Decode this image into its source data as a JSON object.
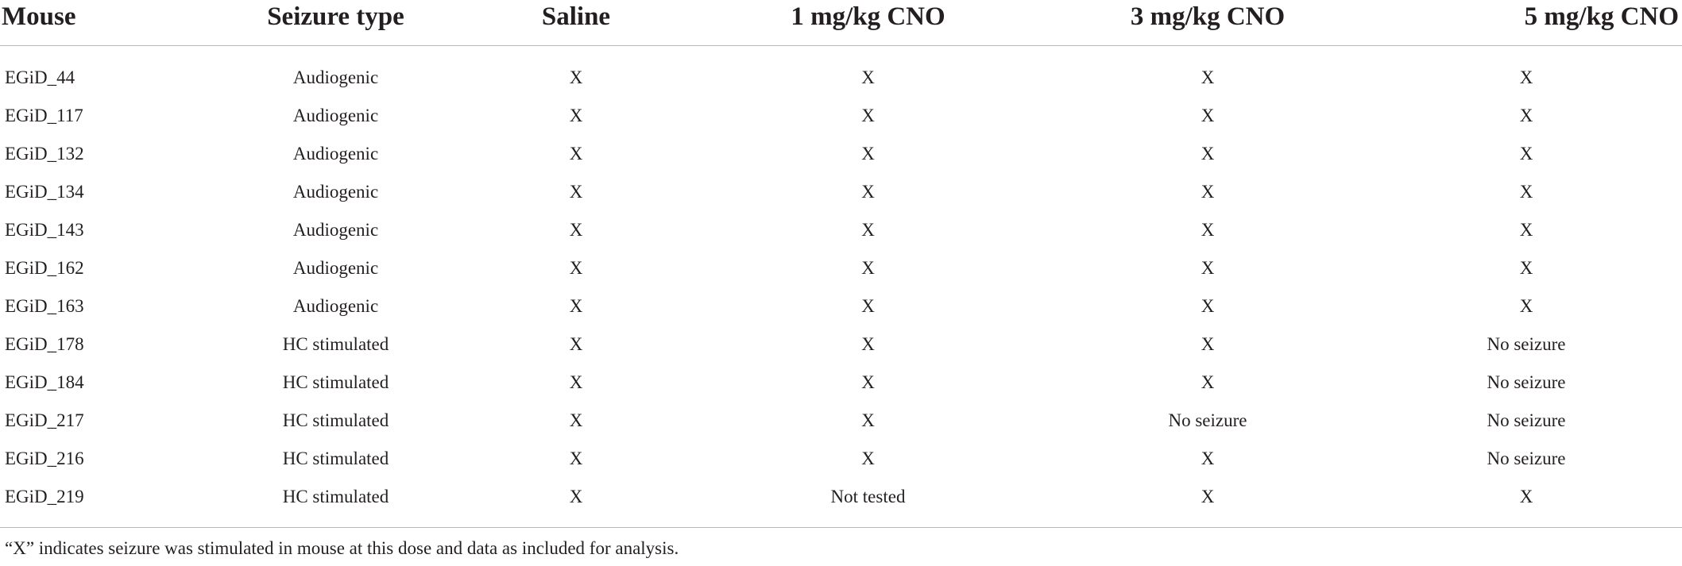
{
  "table": {
    "headers": [
      "Mouse",
      "Seizure type",
      "Saline",
      "1 mg/kg CNO",
      "3 mg/kg CNO",
      "5 mg/kg CNO"
    ],
    "rows": [
      [
        "EGiD_44",
        "Audiogenic",
        "X",
        "X",
        "X",
        "X"
      ],
      [
        "EGiD_117",
        "Audiogenic",
        "X",
        "X",
        "X",
        "X"
      ],
      [
        "EGiD_132",
        "Audiogenic",
        "X",
        "X",
        "X",
        "X"
      ],
      [
        "EGiD_134",
        "Audiogenic",
        "X",
        "X",
        "X",
        "X"
      ],
      [
        "EGiD_143",
        "Audiogenic",
        "X",
        "X",
        "X",
        "X"
      ],
      [
        "EGiD_162",
        "Audiogenic",
        "X",
        "X",
        "X",
        "X"
      ],
      [
        "EGiD_163",
        "Audiogenic",
        "X",
        "X",
        "X",
        "X"
      ],
      [
        "EGiD_178",
        "HC stimulated",
        "X",
        "X",
        "X",
        "No seizure"
      ],
      [
        "EGiD_184",
        "HC stimulated",
        "X",
        "X",
        "X",
        "No seizure"
      ],
      [
        "EGiD_217",
        "HC stimulated",
        "X",
        "X",
        "No seizure",
        "No seizure"
      ],
      [
        "EGiD_216",
        "HC stimulated",
        "X",
        "X",
        "X",
        "No seizure"
      ],
      [
        "EGiD_219",
        "HC stimulated",
        "X",
        "Not tested",
        "X",
        "X"
      ]
    ]
  },
  "footnote": "“X” indicates seizure was stimulated in mouse at this dose and data as included for analysis."
}
